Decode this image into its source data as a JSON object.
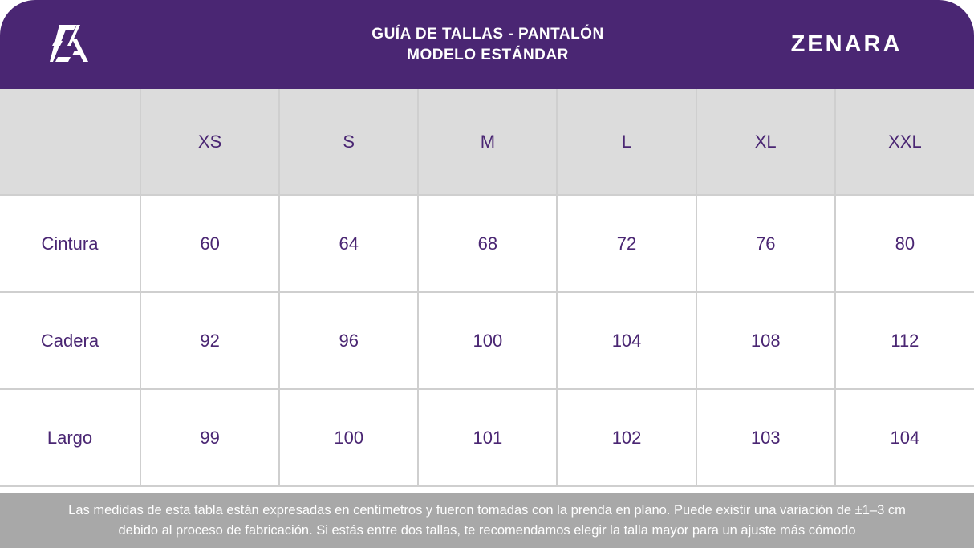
{
  "header": {
    "logo_text": "ZA",
    "title_line1": "GUÍA DE TALLAS - PANTALÓN",
    "title_line2": "MODELO ESTÁNDAR",
    "brand": "ZENARA"
  },
  "table": {
    "sizes": [
      "XS",
      "S",
      "M",
      "L",
      "XL",
      "XXL"
    ],
    "rows": [
      {
        "label": "Cintura",
        "values": [
          "60",
          "64",
          "68",
          "72",
          "76",
          "80"
        ]
      },
      {
        "label": "Cadera",
        "values": [
          "92",
          "96",
          "100",
          "104",
          "108",
          "112"
        ]
      },
      {
        "label": "Largo",
        "values": [
          "99",
          "100",
          "101",
          "102",
          "103",
          "104"
        ]
      }
    ]
  },
  "footer": {
    "line1": "Las medidas de esta tabla están expresadas en centímetros y fueron tomadas con la prenda en plano. Puede existir una variación de ±1–3 cm",
    "line2": "debido al proceso de fabricación. Si estás entre dos tallas, te recomendamos elegir la talla mayor para un ajuste más cómodo"
  },
  "colors": {
    "header_bg": "#4a2673",
    "text_purple": "#4a2673",
    "header_row_bg": "#dcdcdc",
    "footer_bg": "#a8a8a8"
  }
}
